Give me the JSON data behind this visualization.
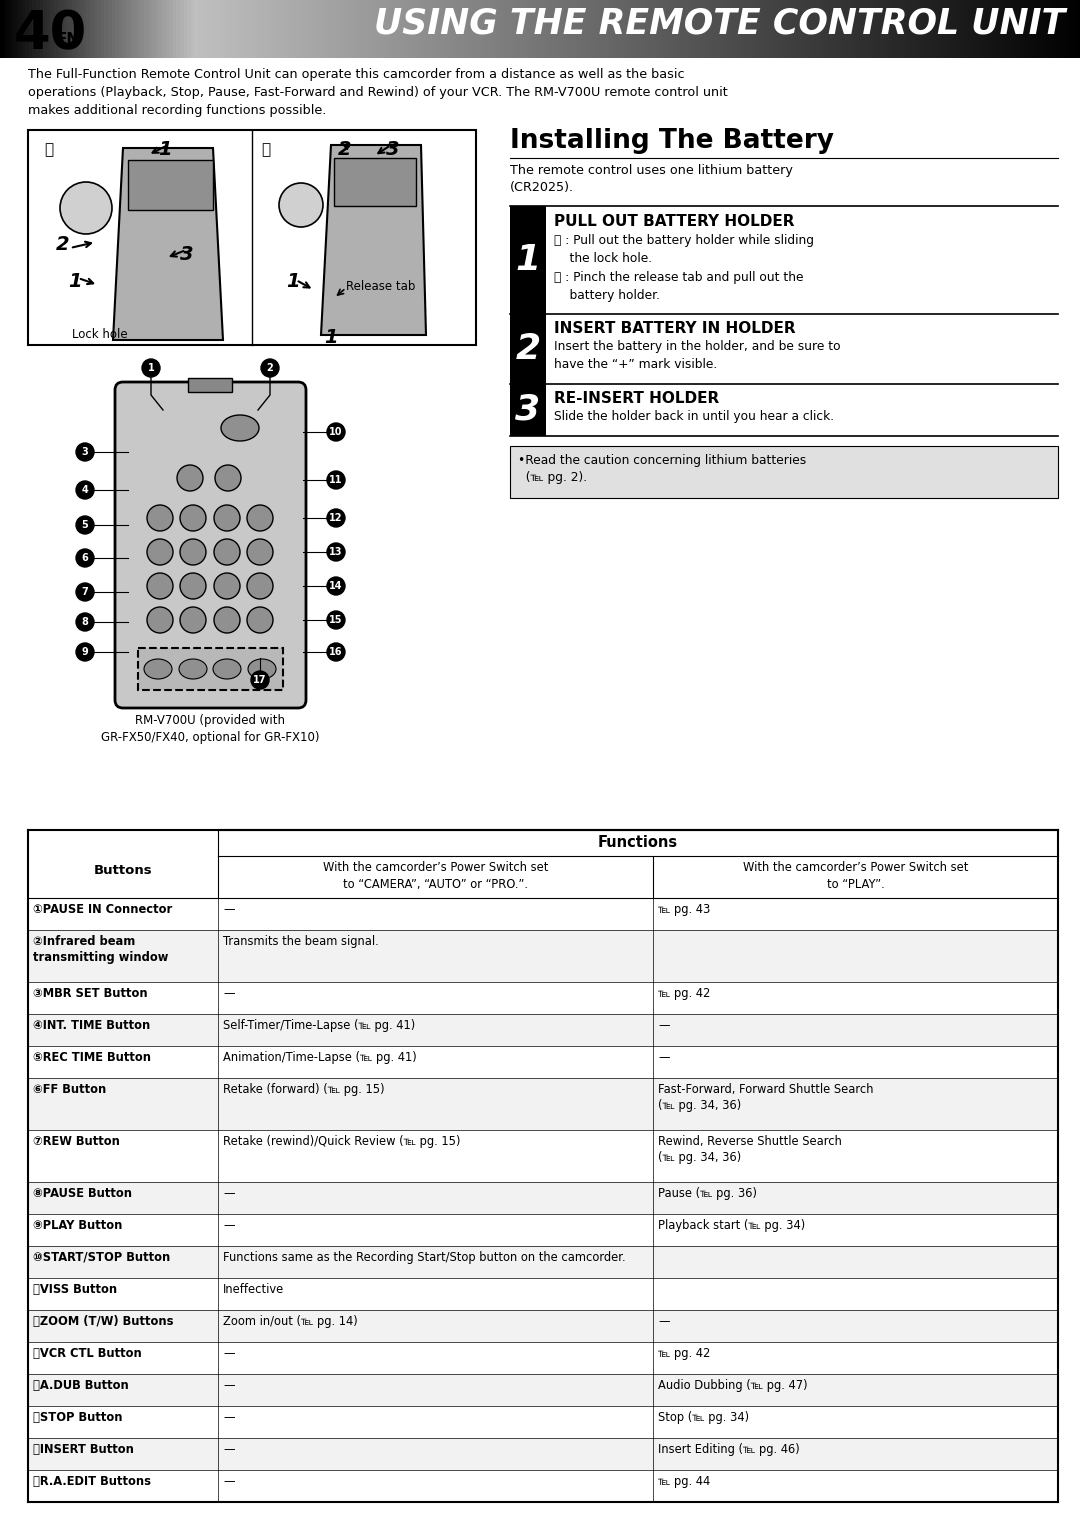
{
  "page_num": "40",
  "page_num_sub": "EN",
  "header_title": "USING THE REMOTE CONTROL UNIT",
  "intro_text": "The Full-Function Remote Control Unit can operate this camcorder from a distance as well as the basic\noperations (Playback, Stop, Pause, Fast-Forward and Rewind) of your VCR. The RM-V700U remote control unit\nmakes additional recording functions possible.",
  "installing_title": "Installing The Battery",
  "installing_subtitle": "The remote control uses one lithium battery\n(CR2025).",
  "step1_title": "PULL OUT BATTERY HOLDER",
  "step1_body_a": "Ⓐ : Pull out the battery holder while sliding\n    the lock hole.",
  "step1_body_b": "Ⓑ : Pinch the release tab and pull out the\n    battery holder.",
  "step2_title": "INSERT BATTERY IN HOLDER",
  "step2_body": "Insert the battery in the holder, and be sure to\nhave the “+” mark visible.",
  "step3_title": "RE-INSERT HOLDER",
  "step3_body": "Slide the holder back in until you hear a click.",
  "caution_text": "•Read the caution concerning lithium batteries\n  (℡ pg. 2).",
  "remote_caption": "RM-V700U (provided with\nGR-FX50/FX40, optional for GR-FX10)",
  "table_title": "Functions",
  "col1_header": "Buttons",
  "col2_header": "With the camcorder’s Power Switch set\nto “CAMERA”, “AUTO” or “PRO.”.",
  "col3_header": "With the camcorder’s Power Switch set\nto “PLAY”.",
  "table_rows": [
    [
      "①PAUSE IN Connector",
      "—",
      "℡ pg. 43"
    ],
    [
      "②Infrared beam\ntransmitting window",
      "Transmits the beam signal.",
      ""
    ],
    [
      "③MBR SET Button",
      "—",
      "℡ pg. 42"
    ],
    [
      "④INT. TIME Button",
      "Self-Timer/Time-Lapse (℡ pg. 41)",
      "—"
    ],
    [
      "⑤REC TIME Button",
      "Animation/Time-Lapse (℡ pg. 41)",
      "—"
    ],
    [
      "⑥FF Button",
      "Retake (forward) (℡ pg. 15)",
      "Fast-Forward, Forward Shuttle Search\n(℡ pg. 34, 36)"
    ],
    [
      "⑦REW Button",
      "Retake (rewind)/Quick Review (℡ pg. 15)",
      "Rewind, Reverse Shuttle Search\n(℡ pg. 34, 36)"
    ],
    [
      "⑧PAUSE Button",
      "—",
      "Pause (℡ pg. 36)"
    ],
    [
      "⑨PLAY Button",
      "—",
      "Playback start (℡ pg. 34)"
    ],
    [
      "⑩START/STOP Button",
      "Functions same as the Recording Start/Stop button on the camcorder.",
      ""
    ],
    [
      "⑪VISS Button",
      "Ineffective",
      ""
    ],
    [
      "⑫ZOOM (T/W) Buttons",
      "Zoom in/out (℡ pg. 14)",
      "—"
    ],
    [
      "⑬VCR CTL Button",
      "—",
      "℡ pg. 42"
    ],
    [
      "⑭A.DUB Button",
      "—",
      "Audio Dubbing (℡ pg. 47)"
    ],
    [
      "⑮STOP Button",
      "—",
      "Stop (℡ pg. 34)"
    ],
    [
      "⑯INSERT Button",
      "—",
      "Insert Editing (℡ pg. 46)"
    ],
    [
      "ⒶR.A.EDIT Buttons",
      "—",
      "℡ pg. 44"
    ]
  ],
  "bg_color": "#ffffff"
}
